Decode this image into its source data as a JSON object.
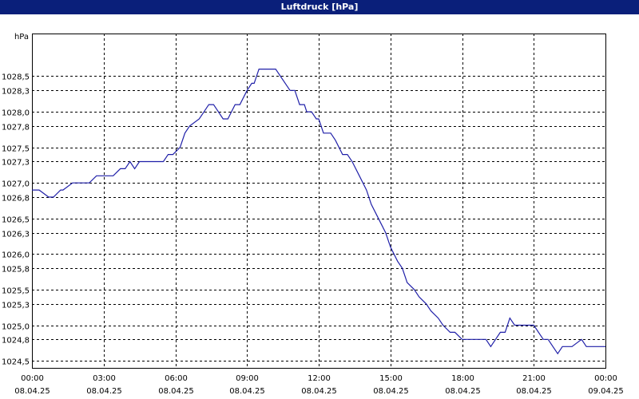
{
  "window": {
    "title": "Luftdruck [hPa]"
  },
  "colors": {
    "title_bar": "#0a1f7a",
    "series": "#1f1fa8",
    "grid": "#000000"
  },
  "chart_data": {
    "type": "line",
    "title": "Luftdruck [hPa]",
    "ylabel": "hPa",
    "xlabel": "",
    "ylim": [
      1024.4,
      1029.1
    ],
    "xlim": [
      0,
      24
    ],
    "grid": true,
    "y_ticks": [
      1024.5,
      1024.8,
      1025.0,
      1025.3,
      1025.5,
      1025.8,
      1026.0,
      1026.3,
      1026.5,
      1026.8,
      1027.0,
      1027.3,
      1027.5,
      1027.8,
      1028.0,
      1028.3,
      1028.5
    ],
    "y_tick_labels": [
      "1024,5",
      "1024,8",
      "1025,0",
      "1025,3",
      "1025,5",
      "1025,8",
      "1026,0",
      "1026,3",
      "1026,5",
      "1026,8",
      "1027,0",
      "1027,3",
      "1027,5",
      "1027,8",
      "1028,0",
      "1028,3",
      "1028,5"
    ],
    "x_ticks": [
      0,
      3,
      6,
      9,
      12,
      15,
      18,
      21,
      24
    ],
    "x_tick_labels": [
      [
        "00:00",
        "08.04.25"
      ],
      [
        "03:00",
        "08.04.25"
      ],
      [
        "06:00",
        "08.04.25"
      ],
      [
        "09:00",
        "08.04.25"
      ],
      [
        "12:00",
        "08.04.25"
      ],
      [
        "15:00",
        "08.04.25"
      ],
      [
        "18:00",
        "08.04.25"
      ],
      [
        "21:00",
        "08.04.25"
      ],
      [
        "00:00",
        "09.04.25"
      ]
    ],
    "series": [
      {
        "x": [
          0.0,
          0.3,
          0.7,
          0.9,
          1.2,
          1.3,
          1.7,
          2.0,
          2.3,
          2.4,
          2.7,
          3.0,
          3.3,
          3.4,
          3.7,
          3.9,
          4.1,
          4.3,
          4.5,
          5.0,
          5.5,
          5.7,
          5.9,
          6.2,
          6.4,
          6.6,
          7.0,
          7.2,
          7.4,
          7.6,
          7.8,
          8.0,
          8.2,
          8.5,
          8.7,
          9.0,
          9.2,
          9.3,
          9.5,
          9.7,
          10.0,
          10.2,
          10.4,
          10.6,
          10.8,
          11.0,
          11.2,
          11.4,
          11.5,
          11.7,
          11.9,
          12.0,
          12.2,
          12.5,
          12.7,
          13.0,
          13.2,
          13.4,
          13.7,
          14.0,
          14.2,
          14.5,
          14.8,
          15.0,
          15.3,
          15.5,
          15.7,
          16.0,
          16.2,
          16.5,
          16.7,
          17.0,
          17.2,
          17.5,
          17.7,
          18.0,
          18.3,
          18.5,
          18.7,
          19.0,
          19.2,
          19.4,
          19.6,
          19.8,
          20.0,
          20.2,
          20.4,
          20.6,
          20.8,
          21.0,
          21.2,
          21.4,
          21.6,
          21.8,
          22.0,
          22.2,
          22.4,
          22.6,
          23.0,
          23.2,
          23.4,
          24.0
        ],
        "y": [
          1026.9,
          1026.9,
          1026.8,
          1026.8,
          1026.9,
          1026.9,
          1027.0,
          1027.0,
          1027.0,
          1027.0,
          1027.1,
          1027.1,
          1027.1,
          1027.1,
          1027.2,
          1027.2,
          1027.3,
          1027.2,
          1027.3,
          1027.3,
          1027.3,
          1027.4,
          1027.4,
          1027.5,
          1027.7,
          1027.8,
          1027.9,
          1028.0,
          1028.1,
          1028.1,
          1028.0,
          1027.9,
          1027.9,
          1028.1,
          1028.1,
          1028.3,
          1028.4,
          1028.4,
          1028.6,
          1028.6,
          1028.6,
          1028.6,
          1028.5,
          1028.4,
          1028.3,
          1028.3,
          1028.1,
          1028.1,
          1028.0,
          1028.0,
          1027.9,
          1027.9,
          1027.7,
          1027.7,
          1027.6,
          1027.4,
          1027.4,
          1027.3,
          1027.1,
          1026.9,
          1026.7,
          1026.5,
          1026.3,
          1026.1,
          1025.9,
          1025.8,
          1025.6,
          1025.5,
          1025.4,
          1025.3,
          1025.2,
          1025.1,
          1025.0,
          1024.9,
          1024.9,
          1024.8,
          1024.8,
          1024.8,
          1024.8,
          1024.8,
          1024.7,
          1024.8,
          1024.9,
          1024.9,
          1025.1,
          1025.0,
          1025.0,
          1025.0,
          1025.0,
          1025.0,
          1024.9,
          1024.8,
          1024.8,
          1024.7,
          1024.6,
          1024.7,
          1024.7,
          1024.7,
          1024.8,
          1024.7,
          1024.7,
          1024.7
        ]
      }
    ]
  }
}
